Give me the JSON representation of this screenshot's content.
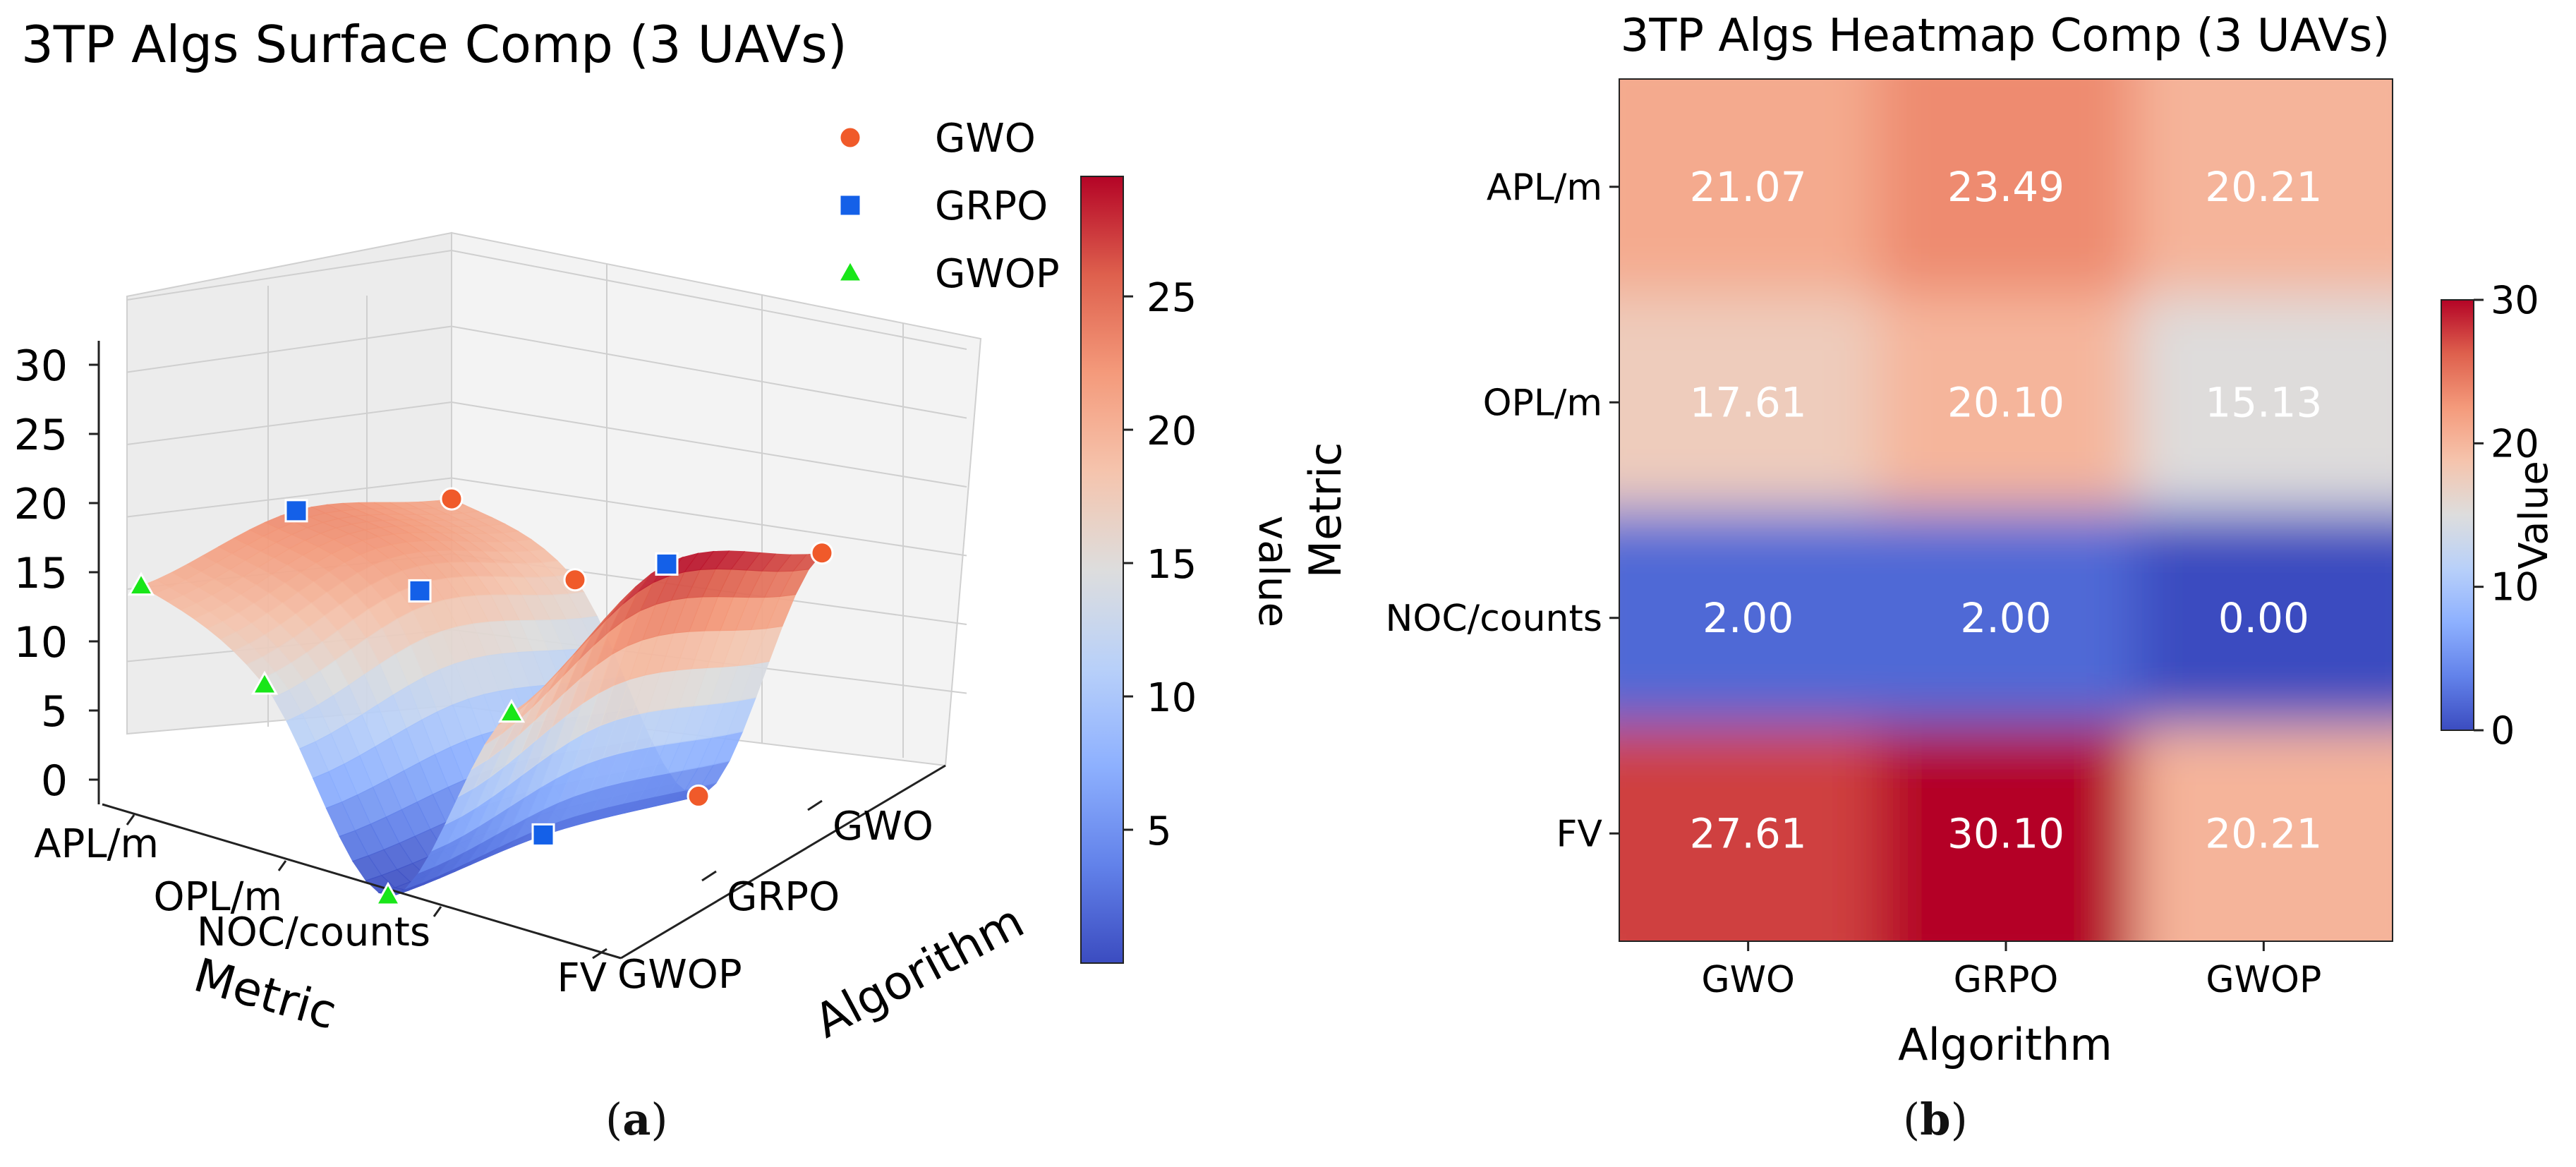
{
  "figure_captions": {
    "a": "a",
    "b": "b"
  },
  "chart_data": [
    {
      "type": "surface3d",
      "title": "3TP Algs Surface Comp (3 UAVs)",
      "xlabel": "Metric",
      "ylabel": "Algorithm",
      "categories": [
        "APL/m",
        "OPL/m",
        "NOC/counts",
        "FV"
      ],
      "algorithms": [
        "GWOP",
        "GRPO",
        "GWO"
      ],
      "z_ticks": [
        0,
        5,
        10,
        15,
        20,
        25,
        30
      ],
      "zlim": [
        0,
        30
      ],
      "series": [
        {
          "name": "GWO",
          "marker": "circle",
          "color": "#f05a2a",
          "values": [
            21.07,
            17.61,
            2.0,
            27.61
          ]
        },
        {
          "name": "GRPO",
          "marker": "square",
          "color": "#1460e8",
          "values": [
            23.49,
            20.1,
            2.0,
            30.1
          ]
        },
        {
          "name": "GWOP",
          "marker": "triangle",
          "color": "#19e619",
          "values": [
            20.21,
            15.13,
            0.0,
            20.21
          ]
        }
      ],
      "colorbar": {
        "label": "value",
        "ticks": [
          5,
          10,
          15,
          20,
          25
        ],
        "range": [
          0,
          30
        ]
      }
    },
    {
      "type": "heatmap",
      "title": "3TP Algs Heatmap Comp (3 UAVs)",
      "xlabel": "Algorithm",
      "ylabel": "Metric",
      "x_categories": [
        "GWO",
        "GRPO",
        "GWOP"
      ],
      "y_categories": [
        "APL/m",
        "OPL/m",
        "NOC/counts",
        "FV"
      ],
      "values": [
        [
          21.07,
          23.49,
          20.21
        ],
        [
          17.61,
          20.1,
          15.13
        ],
        [
          2.0,
          2.0,
          0.0
        ],
        [
          27.61,
          30.1,
          20.21
        ]
      ],
      "value_labels": [
        [
          "21.07",
          "23.49",
          "20.21"
        ],
        [
          "17.61",
          "20.10",
          "15.13"
        ],
        [
          "2.00",
          "2.00",
          "0.00"
        ],
        [
          "27.61",
          "30.10",
          "20.21"
        ]
      ],
      "colorbar": {
        "label": "Value",
        "ticks": [
          0,
          10,
          20,
          30
        ],
        "range": [
          0,
          30
        ]
      }
    }
  ]
}
